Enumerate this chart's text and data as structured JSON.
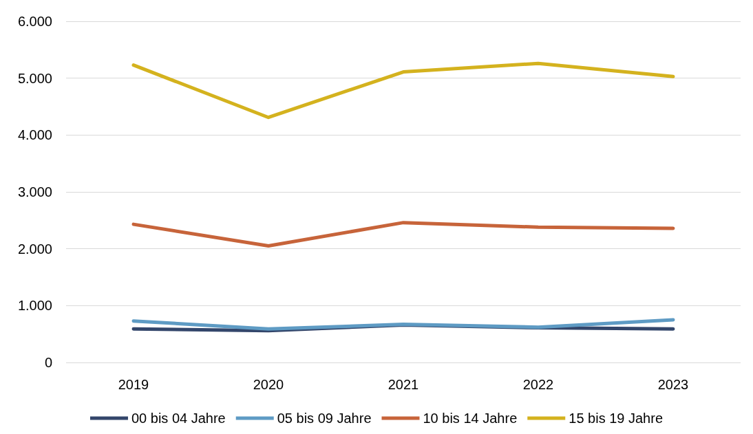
{
  "chart_data": {
    "type": "line",
    "categories": [
      "2019",
      "2020",
      "2021",
      "2022",
      "2023"
    ],
    "series": [
      {
        "name": "00 bis 04 Jahre",
        "color": "#33466b",
        "values": [
          590,
          560,
          660,
          610,
          590
        ]
      },
      {
        "name": "05 bis 09 Jahre",
        "color": "#5e9bc4",
        "values": [
          730,
          590,
          670,
          620,
          750
        ]
      },
      {
        "name": "10 bis 14 Jahre",
        "color": "#c7643a",
        "values": [
          2430,
          2050,
          2460,
          2380,
          2360
        ]
      },
      {
        "name": "15 bis 19 Jahre",
        "color": "#d4b21e",
        "values": [
          5230,
          4310,
          5110,
          5260,
          5030
        ]
      }
    ],
    "ylim": [
      0,
      6000
    ],
    "yticks": [
      {
        "value": 0,
        "label": "0"
      },
      {
        "value": 1000,
        "label": "1.000"
      },
      {
        "value": 2000,
        "label": "2.000"
      },
      {
        "value": 3000,
        "label": "3.000"
      },
      {
        "value": 4000,
        "label": "4.000"
      },
      {
        "value": 5000,
        "label": "5.000"
      },
      {
        "value": 6000,
        "label": "6.000"
      }
    ],
    "grid": "y",
    "legend": "bottom",
    "marker": "none",
    "line_style": "solid"
  }
}
